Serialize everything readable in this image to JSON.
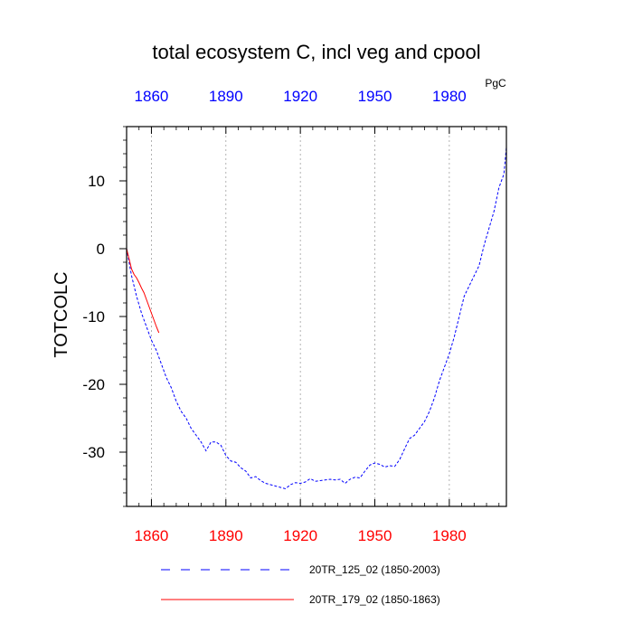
{
  "chart_data": {
    "type": "line",
    "title": "total ecosystem C, incl veg and cpool",
    "units": "PgC",
    "ylabel": "TOTCOLC",
    "xlabel": "",
    "xlim": [
      1850,
      2003
    ],
    "ylim": [
      -38,
      18
    ],
    "x_ticks": [
      "1860",
      "1890",
      "1920",
      "1950",
      "1980"
    ],
    "y_ticks": [
      "10",
      "0",
      "-10",
      "-20",
      "-30"
    ],
    "grid": "vertical dotted",
    "legend_position": "bottom",
    "colors": {
      "top_tick_labels": "#0000ff",
      "bottom_tick_labels": "#ff0000"
    },
    "series": [
      {
        "name": "20TR_125_02 (1850-2003)",
        "color": "#0000ff",
        "dash": "dashed",
        "x": [
          1850,
          1852,
          1854,
          1856,
          1858,
          1860,
          1862,
          1864,
          1866,
          1868,
          1870,
          1872,
          1874,
          1876,
          1878,
          1880,
          1882,
          1884,
          1886,
          1888,
          1890,
          1892,
          1894,
          1896,
          1898,
          1900,
          1902,
          1904,
          1906,
          1908,
          1910,
          1912,
          1914,
          1916,
          1918,
          1920,
          1922,
          1924,
          1926,
          1928,
          1930,
          1932,
          1934,
          1936,
          1938,
          1940,
          1942,
          1944,
          1946,
          1948,
          1950,
          1952,
          1954,
          1956,
          1958,
          1960,
          1962,
          1964,
          1966,
          1968,
          1970,
          1972,
          1974,
          1976,
          1978,
          1980,
          1982,
          1984,
          1986,
          1988,
          1990,
          1992,
          1994,
          1996,
          1998,
          2000,
          2002,
          2003
        ],
        "y": [
          0,
          -4,
          -7,
          -9.5,
          -11.5,
          -13.5,
          -15,
          -17,
          -19,
          -20.5,
          -22.5,
          -24,
          -25,
          -26.5,
          -27.5,
          -28.5,
          -29.8,
          -28.5,
          -28.5,
          -29,
          -30.5,
          -31.3,
          -31.5,
          -32.3,
          -32.8,
          -33.8,
          -33.6,
          -34.2,
          -34.6,
          -34.8,
          -35,
          -35.2,
          -35.4,
          -34.8,
          -34.5,
          -34.6,
          -34.4,
          -33.9,
          -34.3,
          -34.2,
          -34.1,
          -34,
          -34.1,
          -34,
          -34.6,
          -34,
          -33.7,
          -33.8,
          -32.8,
          -31.9,
          -31.6,
          -31.8,
          -32.2,
          -32,
          -32.1,
          -31.1,
          -29.5,
          -28,
          -27.5,
          -26.5,
          -25.5,
          -24,
          -22,
          -19.5,
          -17.5,
          -15.5,
          -13,
          -10,
          -7,
          -5.5,
          -4,
          -2.5,
          0.5,
          3,
          5.5,
          9,
          11,
          15
        ]
      },
      {
        "name": "20TR_179_02 (1850-1863)",
        "color": "#ff0000",
        "dash": "solid",
        "x": [
          1850,
          1851,
          1852,
          1853,
          1854,
          1855,
          1856,
          1857,
          1858,
          1859,
          1860,
          1861,
          1862,
          1863
        ],
        "y": [
          0,
          -1.5,
          -3,
          -3.8,
          -4.3,
          -5,
          -5.8,
          -6.5,
          -7.5,
          -8.5,
          -9.5,
          -10.5,
          -11.5,
          -12.4
        ]
      }
    ]
  }
}
